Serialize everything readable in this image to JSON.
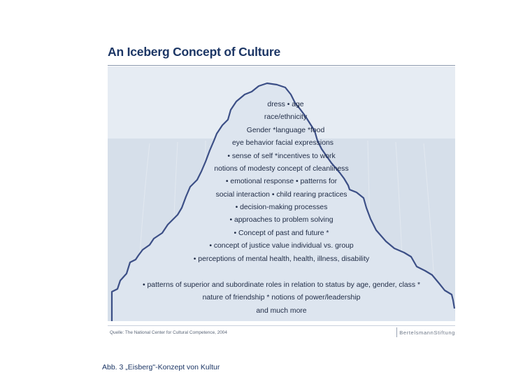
{
  "title": "An Iceberg Concept of Culture",
  "items": [
    "dress  • age",
    "race/ethnicity",
    "Gender  *language *food",
    "eye behavior facial expressions",
    "• sense of self *incentives to work",
    "notions of modesty concept of cleanliness",
    "• emotional response  • patterns for",
    "social interaction  • child rearing practices",
    "• decision-making processes",
    "• approaches to problem solving",
    "• Concept of past and future *",
    "• concept of justice value individual vs. group",
    "• perceptions of mental health, health, illness, disability",
    "• patterns of superior and subordinate roles in relation to status by age, gender, class *",
    "nature of friendship * notions of power/leadership",
    "and much more"
  ],
  "source": "Quelle: The National Center for Cultural Competence, 2004",
  "brand": "BertelsmannStiftung",
  "caption": "Abb. 3 „Eisberg\"-Konzept von Kultur",
  "colors": {
    "title": "#1c3665",
    "sky": "#e6ecf3",
    "water": "#d6dfea",
    "iceberg_outline": "#3c4f86"
  }
}
